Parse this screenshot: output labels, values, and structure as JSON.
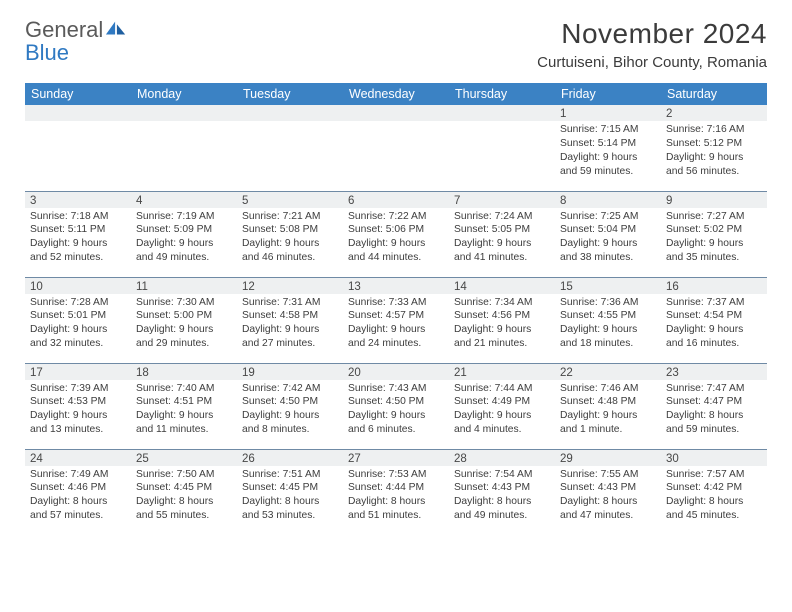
{
  "logo": {
    "word1": "General",
    "word2": "Blue"
  },
  "title": "November 2024",
  "location": "Curtuiseni, Bihor County, Romania",
  "colors": {
    "header_bg": "#3b82c4",
    "header_text": "#ffffff",
    "daynum_bg": "#eef0f1",
    "rule": "#6f8aa5",
    "logo_gray": "#5a5a5a",
    "logo_blue": "#2f79c2",
    "text": "#3b3b3b"
  },
  "weekdays": [
    "Sunday",
    "Monday",
    "Tuesday",
    "Wednesday",
    "Thursday",
    "Friday",
    "Saturday"
  ],
  "weeks": [
    [
      {
        "day": "",
        "lines": [
          "",
          "",
          "",
          ""
        ]
      },
      {
        "day": "",
        "lines": [
          "",
          "",
          "",
          ""
        ]
      },
      {
        "day": "",
        "lines": [
          "",
          "",
          "",
          ""
        ]
      },
      {
        "day": "",
        "lines": [
          "",
          "",
          "",
          ""
        ]
      },
      {
        "day": "",
        "lines": [
          "",
          "",
          "",
          ""
        ]
      },
      {
        "day": "1",
        "lines": [
          "Sunrise: 7:15 AM",
          "Sunset: 5:14 PM",
          "Daylight: 9 hours",
          "and 59 minutes."
        ]
      },
      {
        "day": "2",
        "lines": [
          "Sunrise: 7:16 AM",
          "Sunset: 5:12 PM",
          "Daylight: 9 hours",
          "and 56 minutes."
        ]
      }
    ],
    [
      {
        "day": "3",
        "lines": [
          "Sunrise: 7:18 AM",
          "Sunset: 5:11 PM",
          "Daylight: 9 hours",
          "and 52 minutes."
        ]
      },
      {
        "day": "4",
        "lines": [
          "Sunrise: 7:19 AM",
          "Sunset: 5:09 PM",
          "Daylight: 9 hours",
          "and 49 minutes."
        ]
      },
      {
        "day": "5",
        "lines": [
          "Sunrise: 7:21 AM",
          "Sunset: 5:08 PM",
          "Daylight: 9 hours",
          "and 46 minutes."
        ]
      },
      {
        "day": "6",
        "lines": [
          "Sunrise: 7:22 AM",
          "Sunset: 5:06 PM",
          "Daylight: 9 hours",
          "and 44 minutes."
        ]
      },
      {
        "day": "7",
        "lines": [
          "Sunrise: 7:24 AM",
          "Sunset: 5:05 PM",
          "Daylight: 9 hours",
          "and 41 minutes."
        ]
      },
      {
        "day": "8",
        "lines": [
          "Sunrise: 7:25 AM",
          "Sunset: 5:04 PM",
          "Daylight: 9 hours",
          "and 38 minutes."
        ]
      },
      {
        "day": "9",
        "lines": [
          "Sunrise: 7:27 AM",
          "Sunset: 5:02 PM",
          "Daylight: 9 hours",
          "and 35 minutes."
        ]
      }
    ],
    [
      {
        "day": "10",
        "lines": [
          "Sunrise: 7:28 AM",
          "Sunset: 5:01 PM",
          "Daylight: 9 hours",
          "and 32 minutes."
        ]
      },
      {
        "day": "11",
        "lines": [
          "Sunrise: 7:30 AM",
          "Sunset: 5:00 PM",
          "Daylight: 9 hours",
          "and 29 minutes."
        ]
      },
      {
        "day": "12",
        "lines": [
          "Sunrise: 7:31 AM",
          "Sunset: 4:58 PM",
          "Daylight: 9 hours",
          "and 27 minutes."
        ]
      },
      {
        "day": "13",
        "lines": [
          "Sunrise: 7:33 AM",
          "Sunset: 4:57 PM",
          "Daylight: 9 hours",
          "and 24 minutes."
        ]
      },
      {
        "day": "14",
        "lines": [
          "Sunrise: 7:34 AM",
          "Sunset: 4:56 PM",
          "Daylight: 9 hours",
          "and 21 minutes."
        ]
      },
      {
        "day": "15",
        "lines": [
          "Sunrise: 7:36 AM",
          "Sunset: 4:55 PM",
          "Daylight: 9 hours",
          "and 18 minutes."
        ]
      },
      {
        "day": "16",
        "lines": [
          "Sunrise: 7:37 AM",
          "Sunset: 4:54 PM",
          "Daylight: 9 hours",
          "and 16 minutes."
        ]
      }
    ],
    [
      {
        "day": "17",
        "lines": [
          "Sunrise: 7:39 AM",
          "Sunset: 4:53 PM",
          "Daylight: 9 hours",
          "and 13 minutes."
        ]
      },
      {
        "day": "18",
        "lines": [
          "Sunrise: 7:40 AM",
          "Sunset: 4:51 PM",
          "Daylight: 9 hours",
          "and 11 minutes."
        ]
      },
      {
        "day": "19",
        "lines": [
          "Sunrise: 7:42 AM",
          "Sunset: 4:50 PM",
          "Daylight: 9 hours",
          "and 8 minutes."
        ]
      },
      {
        "day": "20",
        "lines": [
          "Sunrise: 7:43 AM",
          "Sunset: 4:50 PM",
          "Daylight: 9 hours",
          "and 6 minutes."
        ]
      },
      {
        "day": "21",
        "lines": [
          "Sunrise: 7:44 AM",
          "Sunset: 4:49 PM",
          "Daylight: 9 hours",
          "and 4 minutes."
        ]
      },
      {
        "day": "22",
        "lines": [
          "Sunrise: 7:46 AM",
          "Sunset: 4:48 PM",
          "Daylight: 9 hours",
          "and 1 minute."
        ]
      },
      {
        "day": "23",
        "lines": [
          "Sunrise: 7:47 AM",
          "Sunset: 4:47 PM",
          "Daylight: 8 hours",
          "and 59 minutes."
        ]
      }
    ],
    [
      {
        "day": "24",
        "lines": [
          "Sunrise: 7:49 AM",
          "Sunset: 4:46 PM",
          "Daylight: 8 hours",
          "and 57 minutes."
        ]
      },
      {
        "day": "25",
        "lines": [
          "Sunrise: 7:50 AM",
          "Sunset: 4:45 PM",
          "Daylight: 8 hours",
          "and 55 minutes."
        ]
      },
      {
        "day": "26",
        "lines": [
          "Sunrise: 7:51 AM",
          "Sunset: 4:45 PM",
          "Daylight: 8 hours",
          "and 53 minutes."
        ]
      },
      {
        "day": "27",
        "lines": [
          "Sunrise: 7:53 AM",
          "Sunset: 4:44 PM",
          "Daylight: 8 hours",
          "and 51 minutes."
        ]
      },
      {
        "day": "28",
        "lines": [
          "Sunrise: 7:54 AM",
          "Sunset: 4:43 PM",
          "Daylight: 8 hours",
          "and 49 minutes."
        ]
      },
      {
        "day": "29",
        "lines": [
          "Sunrise: 7:55 AM",
          "Sunset: 4:43 PM",
          "Daylight: 8 hours",
          "and 47 minutes."
        ]
      },
      {
        "day": "30",
        "lines": [
          "Sunrise: 7:57 AM",
          "Sunset: 4:42 PM",
          "Daylight: 8 hours",
          "and 45 minutes."
        ]
      }
    ]
  ]
}
